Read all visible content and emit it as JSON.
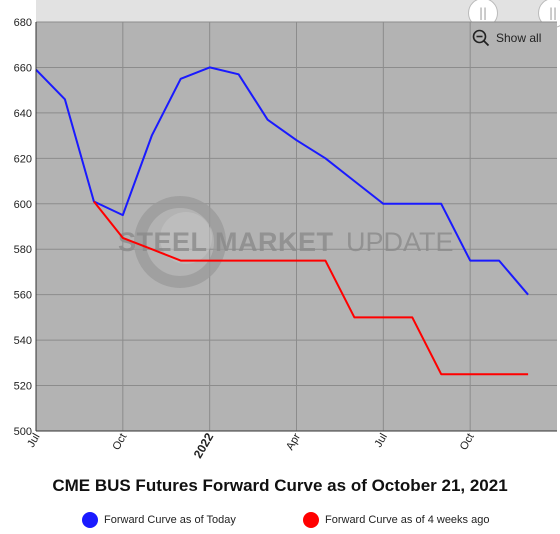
{
  "chart_data": {
    "type": "line",
    "title": "CME BUS Futures Forward Curve as of October 21, 2021",
    "ylim": [
      500,
      680
    ],
    "yticks": [
      500,
      520,
      540,
      560,
      580,
      600,
      620,
      640,
      660,
      680
    ],
    "xlim": [
      "2021-07",
      "2023-01"
    ],
    "xticks": [
      {
        "label": "Jul",
        "x": "2021-07",
        "bold": false
      },
      {
        "label": "Oct",
        "x": "2021-10",
        "bold": false
      },
      {
        "label": "2022",
        "x": "2022-01",
        "bold": true
      },
      {
        "label": "Apr",
        "x": "2022-04",
        "bold": false
      },
      {
        "label": "Jul",
        "x": "2022-07",
        "bold": false
      },
      {
        "label": "Oct",
        "x": "2022-10",
        "bold": false
      }
    ],
    "grid": true,
    "legend_position": "bottom",
    "series": [
      {
        "name": "Forward Curve as of Today",
        "color": "#1a1aff",
        "points": [
          {
            "x": "2021-07",
            "y": 659
          },
          {
            "x": "2021-08",
            "y": 646
          },
          {
            "x": "2021-09",
            "y": 601
          },
          {
            "x": "2021-10",
            "y": 595
          },
          {
            "x": "2021-11",
            "y": 630
          },
          {
            "x": "2021-12",
            "y": 655
          },
          {
            "x": "2022-01",
            "y": 660
          },
          {
            "x": "2022-02",
            "y": 657
          },
          {
            "x": "2022-03",
            "y": 637
          },
          {
            "x": "2022-04",
            "y": 628
          },
          {
            "x": "2022-05",
            "y": 620
          },
          {
            "x": "2022-06",
            "y": 610
          },
          {
            "x": "2022-07",
            "y": 600
          },
          {
            "x": "2022-08",
            "y": 600
          },
          {
            "x": "2022-09",
            "y": 600
          },
          {
            "x": "2022-10",
            "y": 575
          },
          {
            "x": "2022-11",
            "y": 575
          },
          {
            "x": "2022-12",
            "y": 560
          }
        ]
      },
      {
        "name": "Forward Curve as of 4 weeks ago",
        "color": "#ff0000",
        "points": [
          {
            "x": "2021-09",
            "y": 601
          },
          {
            "x": "2021-10",
            "y": 585
          },
          {
            "x": "2021-11",
            "y": 580
          },
          {
            "x": "2021-12",
            "y": 575
          },
          {
            "x": "2022-01",
            "y": 575
          },
          {
            "x": "2022-02",
            "y": 575
          },
          {
            "x": "2022-03",
            "y": 575
          },
          {
            "x": "2022-04",
            "y": 575
          },
          {
            "x": "2022-05",
            "y": 575
          },
          {
            "x": "2022-06",
            "y": 550
          },
          {
            "x": "2022-07",
            "y": 550
          },
          {
            "x": "2022-08",
            "y": 550
          },
          {
            "x": "2022-09",
            "y": 525
          },
          {
            "x": "2022-10",
            "y": 525
          },
          {
            "x": "2022-11",
            "y": 525
          },
          {
            "x": "2022-12",
            "y": 525
          }
        ]
      }
    ]
  },
  "watermark": {
    "text_bold": "STEEL MARKET",
    "text_light": "UPDATE"
  },
  "controls": {
    "show_all_label": "Show all",
    "zoom_icon": "zoom-out-icon",
    "handle_icon": "drag-handle-icon"
  },
  "plot_background": "#b3b3b3"
}
